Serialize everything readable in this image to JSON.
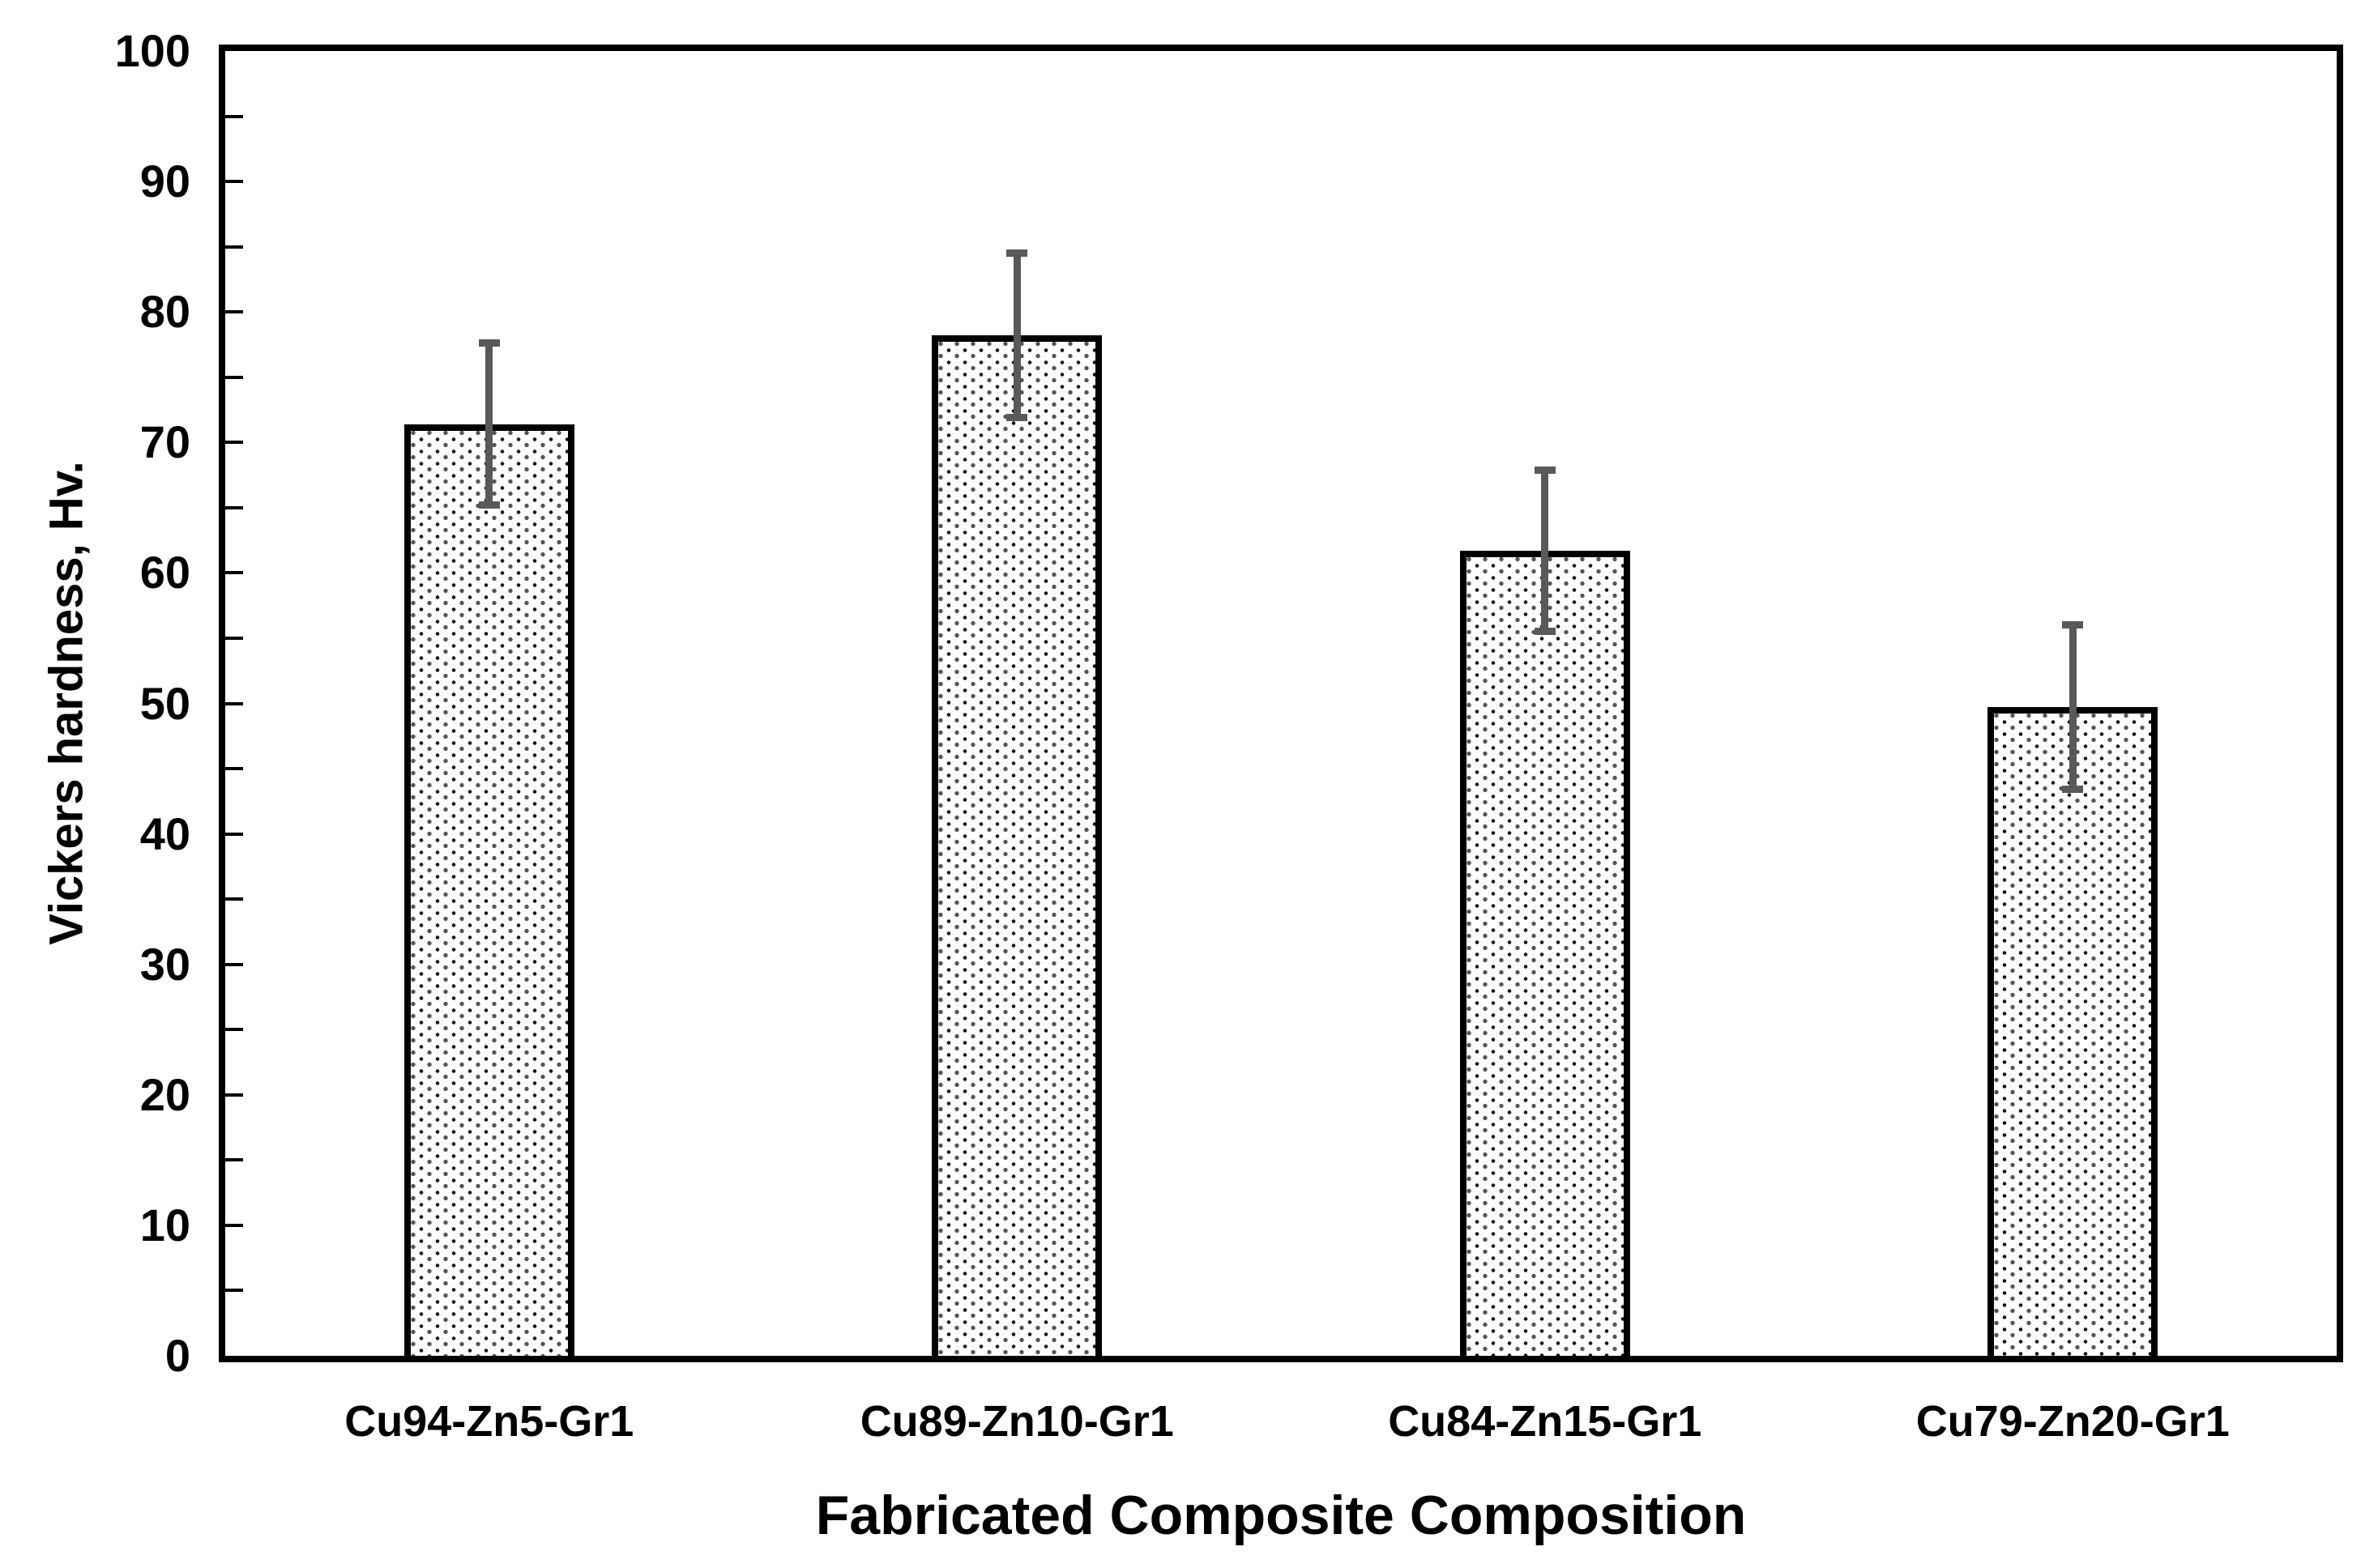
{
  "chart_data": {
    "type": "bar",
    "title": "",
    "xlabel": "Fabricated Composite Composition",
    "ylabel": "Vickers hardness, Hv.",
    "categories": [
      "Cu94-Zn5-Gr1",
      "Cu89-Zn10-Gr1",
      "Cu84-Zn15-Gr1",
      "Cu79-Zn20-Gr1"
    ],
    "values": [
      71.4,
      78.2,
      61.7,
      49.7
    ],
    "errors": [
      6.2,
      6.3,
      6.2,
      6.3
    ],
    "ylim": [
      0,
      100
    ],
    "yticks": [
      0,
      10,
      20,
      30,
      40,
      50,
      60,
      70,
      80,
      90,
      100
    ],
    "ytick_minor_step": 5,
    "grid": false,
    "legend": false,
    "bar_fill": "black-dot-pattern-on-white",
    "bar_border_color": "#000000",
    "error_bar_color": "#595959",
    "frame": "full-box"
  }
}
